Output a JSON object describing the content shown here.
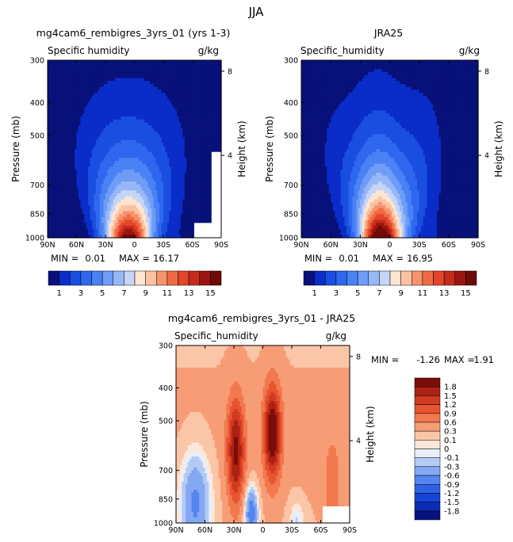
{
  "page_title": "JJA",
  "pressure_ticks": [
    "300",
    "400",
    "500",
    "700",
    "850",
    "1000"
  ],
  "height_ticks": [
    "8",
    "4"
  ],
  "lat_ticks": [
    "90N",
    "60N",
    "30N",
    "0",
    "30S",
    "60S",
    "90S"
  ],
  "colors": {
    "humidity": [
      "#08107a",
      "#0a2cc8",
      "#1a4ee0",
      "#2f67ef",
      "#4a82f5",
      "#6e9cf6",
      "#97b7f7",
      "#c4d5f7",
      "#fde5d2",
      "#fac2a3",
      "#f5946d",
      "#ef6a44",
      "#e2452a",
      "#c42b1c",
      "#9a1510",
      "#6e0a08"
    ],
    "diff": [
      "#07127f",
      "#0a2bb3",
      "#1543d8",
      "#2f62e6",
      "#5585ee",
      "#84a8f2",
      "#b5caf5",
      "#e8eff9",
      "#fde7d8",
      "#fbc6a8",
      "#f79d76",
      "#f2784e",
      "#e85430",
      "#d13a20",
      "#ac2113",
      "#7a0c09"
    ]
  },
  "chart_data": [
    {
      "type": "heatmap",
      "title": "mg4cam6_rembigres_3yrs_01 (yrs 1-3)",
      "left_label": "Specific humidity",
      "units_label": "g/kg",
      "ylabel": "Pressure (mb)",
      "y2label": "Height (km)",
      "stats": {
        "min_label": "MIN =",
        "min": "0.01",
        "max_label": "MAX =",
        "max": "16.17"
      },
      "colorbar_labels": [
        "1",
        "3",
        "5",
        "7",
        "9",
        "11",
        "13",
        "15"
      ],
      "ylim": [
        1000,
        300
      ],
      "xlim": [
        90,
        -90
      ],
      "peak": 16.17,
      "peak_lat": 6
    },
    {
      "type": "heatmap",
      "title": "JRA25",
      "left_label": "Specific_humidity",
      "units_label": "g/kg",
      "ylabel": "Pressure (mb)",
      "y2label": "Height (km)",
      "stats": {
        "min_label": "MIN =",
        "min": "0.01",
        "max_label": "MAX =",
        "max": "16.95"
      },
      "colorbar_labels": [
        "1",
        "3",
        "5",
        "7",
        "9",
        "11",
        "13",
        "15"
      ],
      "ylim": [
        1000,
        300
      ],
      "xlim": [
        90,
        -90
      ],
      "peak": 16.95,
      "peak_lat": 8
    },
    {
      "type": "heatmap",
      "title": "mg4cam6_rembigres_3yrs_01 - JRA25",
      "left_label": "Specific_humidity",
      "units_label": "g/kg",
      "ylabel": "Pressure (mb)",
      "y2label": "Height (km)",
      "stats": {
        "min_label": "MIN =",
        "min": "-1.26",
        "max_label": "MAX =",
        "max": "1.91"
      },
      "colorbar_labels": [
        "1.8",
        "1.5",
        "1.2",
        "0.9",
        "0.6",
        "0.3",
        "0.1",
        "0",
        "-0.1",
        "-0.3",
        "-0.6",
        "-0.9",
        "-1.2",
        "-1.5",
        "-1.8"
      ],
      "ylim": [
        1000,
        300
      ],
      "xlim": [
        90,
        -90
      ],
      "levels": [
        -1.8,
        -1.5,
        -1.2,
        -0.9,
        -0.6,
        -0.3,
        -0.1,
        0,
        0.1,
        0.3,
        0.6,
        0.9,
        1.2,
        1.5,
        1.8
      ]
    }
  ]
}
